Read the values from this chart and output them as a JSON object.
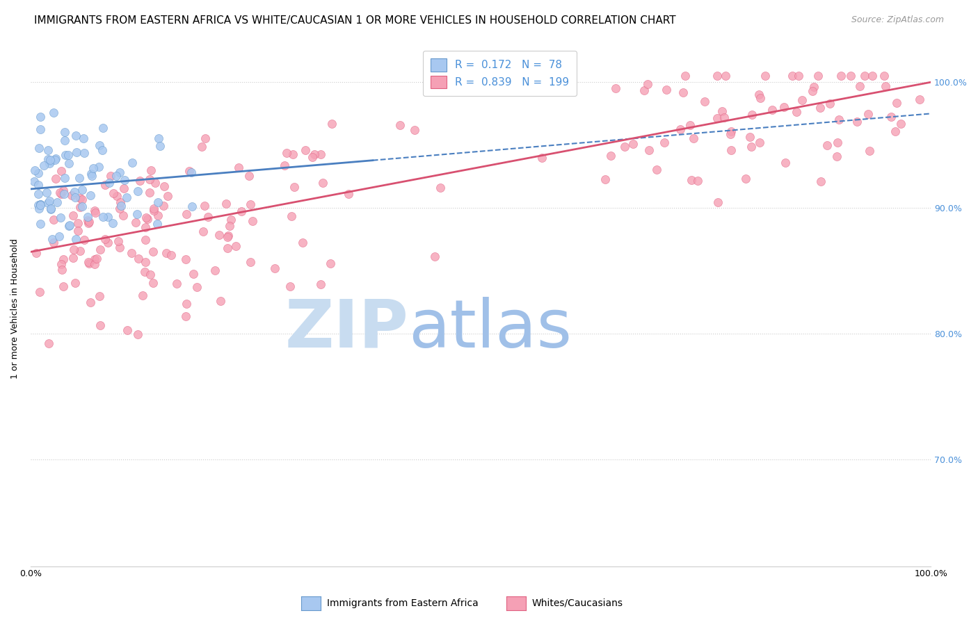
{
  "title": "IMMIGRANTS FROM EASTERN AFRICA VS WHITE/CAUCASIAN 1 OR MORE VEHICLES IN HOUSEHOLD CORRELATION CHART",
  "source": "Source: ZipAtlas.com",
  "ylabel": "1 or more Vehicles in Household",
  "yticks": [
    "100.0%",
    "90.0%",
    "80.0%",
    "70.0%"
  ],
  "ytick_vals": [
    1.0,
    0.9,
    0.8,
    0.7
  ],
  "xlim": [
    0.0,
    1.0
  ],
  "ylim": [
    0.615,
    1.025
  ],
  "legend_blue_R": "0.172",
  "legend_blue_N": "78",
  "legend_pink_R": "0.839",
  "legend_pink_N": "199",
  "legend_blue_label": "Immigrants from Eastern Africa",
  "legend_pink_label": "Whites/Caucasians",
  "blue_color": "#A8C8F0",
  "pink_color": "#F5A0B5",
  "blue_edge_color": "#6699CC",
  "pink_edge_color": "#E06080",
  "blue_line_color": "#4A7FC0",
  "pink_line_color": "#D85070",
  "watermark_zip": "ZIP",
  "watermark_atlas": "atlas",
  "watermark_color_zip": "#C8DCF0",
  "watermark_color_atlas": "#A0C0E8",
  "title_fontsize": 11,
  "source_fontsize": 9,
  "axis_label_fontsize": 9,
  "tick_fontsize": 9,
  "legend_fontsize": 11,
  "blue_intercept": 0.915,
  "blue_slope": 0.06,
  "pink_intercept": 0.865,
  "pink_slope": 0.135
}
